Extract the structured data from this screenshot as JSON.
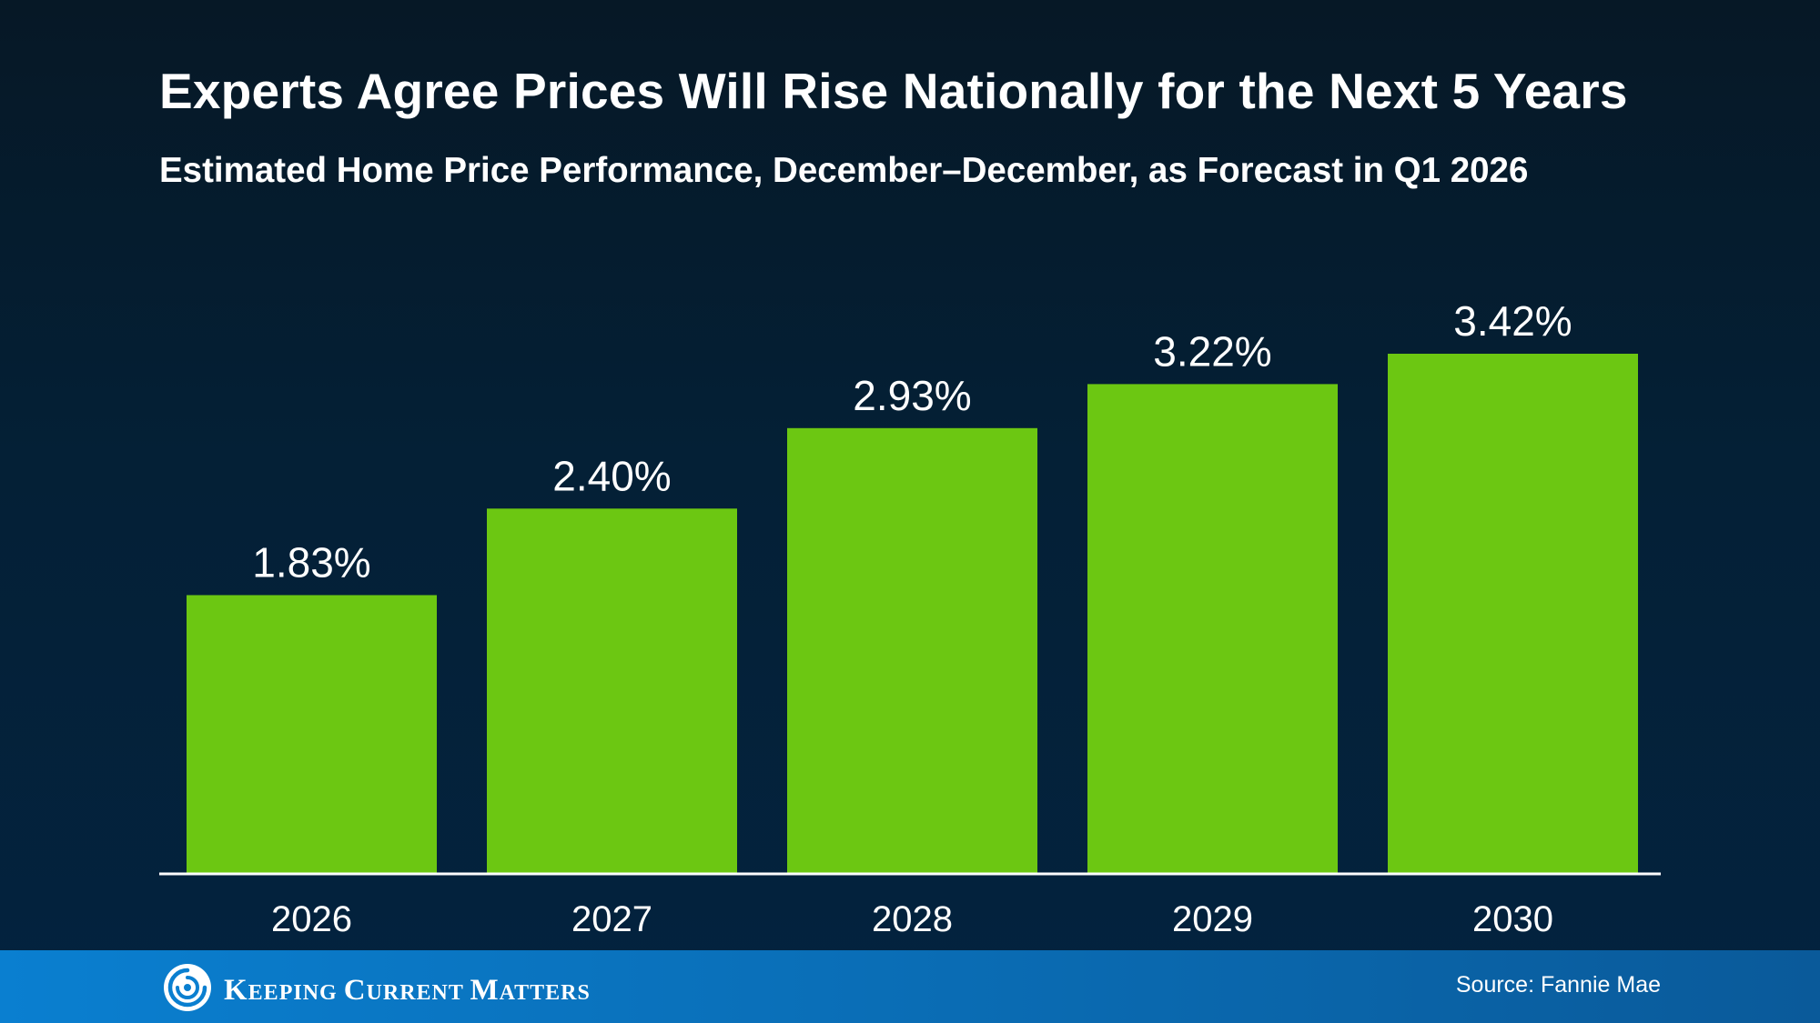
{
  "title": "Experts Agree Prices Will Rise Nationally for the Next 5 Years",
  "subtitle": "Estimated Home Price Performance, December–December, as Forecast in Q1 2026",
  "chart_data": {
    "type": "bar",
    "title": "Experts Agree Prices Will Rise Nationally for the Next 5 Years",
    "subtitle": "Estimated Home Price Performance, December–December, as Forecast in Q1 2026",
    "categories": [
      "2026",
      "2027",
      "2028",
      "2029",
      "2030"
    ],
    "values": [
      1.83,
      2.4,
      2.93,
      3.22,
      3.42
    ],
    "data_labels": [
      "1.83%",
      "2.40%",
      "2.93%",
      "3.22%",
      "3.42%"
    ],
    "xlabel": "",
    "ylabel": "",
    "ylim": [
      0,
      3.42
    ],
    "grid": false,
    "legend": "none",
    "bar_color": "#6cc712"
  },
  "footer": {
    "brand": "Keeping Current Matters",
    "brand_words": [
      {
        "cap": "K",
        "rest": "EEPING"
      },
      {
        "cap": "C",
        "rest": "URRENT"
      },
      {
        "cap": "M",
        "rest": "ATTERS"
      }
    ],
    "source": "Source: Fannie Mae"
  },
  "colors": {
    "background_top": "#061826",
    "background_bottom": "#03233f",
    "bar": "#6cc712",
    "axis": "#ffffff",
    "text": "#ffffff",
    "footer": "#0a6fb8"
  },
  "icons": {
    "logo": "kcm-swirl-logo-icon"
  }
}
